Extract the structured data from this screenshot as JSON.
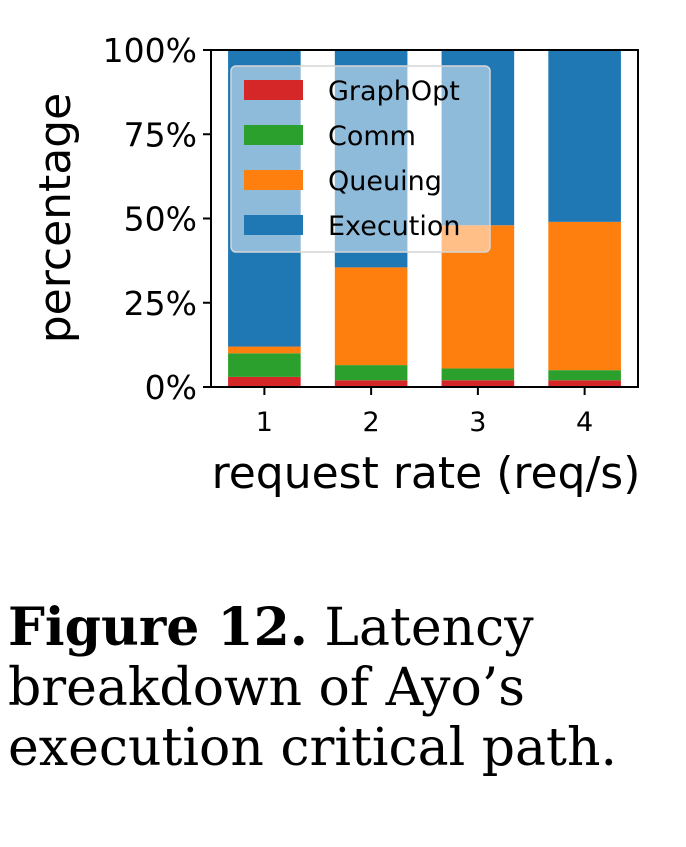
{
  "chart_data": {
    "type": "bar",
    "stacked": true,
    "categories": [
      "1",
      "2",
      "3",
      "4"
    ],
    "series": [
      {
        "name": "GraphOpt",
        "color": "#d62728",
        "values": [
          3,
          2,
          2,
          2
        ]
      },
      {
        "name": "Comm",
        "color": "#2ca02c",
        "values": [
          7,
          4.5,
          3.5,
          3
        ]
      },
      {
        "name": "Queuing",
        "color": "#ff7f0e",
        "values": [
          2,
          29,
          42.5,
          44
        ]
      },
      {
        "name": "Execution",
        "color": "#1f77b4",
        "values": [
          88,
          64.5,
          52,
          51
        ]
      }
    ],
    "ylim": [
      0,
      100
    ],
    "yticks": [
      "0%",
      "25%",
      "50%",
      "75%",
      "100%"
    ],
    "xlabel": "request rate (req/s)",
    "ylabel": "percentage",
    "legend_position": "upper-left",
    "grid": false
  },
  "caption": {
    "label": "Figure 12.",
    "text": "Latency breakdown of Ayo’s execution critical path."
  }
}
